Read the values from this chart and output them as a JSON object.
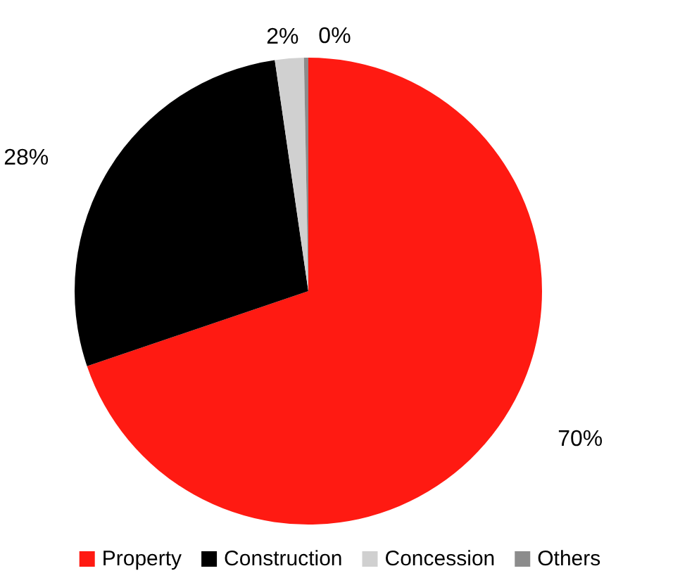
{
  "chart_data": {
    "type": "pie",
    "categories": [
      "Property",
      "Construction",
      "Concession",
      "Others"
    ],
    "values": [
      70,
      28,
      2,
      0.3
    ],
    "value_labels": [
      "70%",
      "28%",
      "2%",
      "0%"
    ],
    "colors": [
      "#ff1a12",
      "#000000",
      "#d0d0d0",
      "#8c8c8c"
    ],
    "legend": "bottom"
  }
}
